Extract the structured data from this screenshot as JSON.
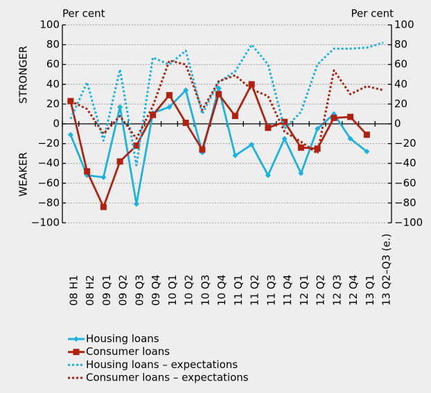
{
  "chart_data": {
    "type": "line",
    "y_label_left": "Per cent",
    "y_label_right": "Per cent",
    "upper_label": "STRONGER",
    "lower_label": "WEAKER",
    "categories": [
      "08 H1",
      "08 H2",
      "09 Q1",
      "09 Q2",
      "09 Q3",
      "09 Q4",
      "10 Q1",
      "10 Q2",
      "10 Q3",
      "10 Q4",
      "11 Q1",
      "11 Q2",
      "11 Q3",
      "11 Q4",
      "12 Q1",
      "12 Q2",
      "12 Q3",
      "12 Q4",
      "13 Q1",
      "13 Q2–Q3 (e.)"
    ],
    "series": [
      {
        "name": "Housing loans",
        "color": "#1ab2e0",
        "style": "solid",
        "marker": "diamond",
        "values": [
          -11,
          -52,
          -54,
          17,
          -81,
          11,
          17,
          34,
          -29,
          36,
          -32,
          -21,
          -52,
          -15,
          -50,
          -5,
          10,
          -15,
          -28,
          null
        ]
      },
      {
        "name": "Consumer loans",
        "color": "#b0220f",
        "style": "solid",
        "marker": "square",
        "values": [
          23,
          -48,
          -84,
          -38,
          -22,
          9,
          29,
          1,
          -26,
          30,
          8,
          40,
          -4,
          2,
          -24,
          -25,
          6,
          7,
          -11,
          null
        ]
      },
      {
        "name": "Housing loans – expectations",
        "color": "#1ab2e0",
        "style": "dotted",
        "values": [
          5,
          42,
          -17,
          55,
          -42,
          67,
          60,
          74,
          10,
          42,
          53,
          80,
          60,
          -5,
          12,
          60,
          76,
          76,
          77,
          82
        ]
      },
      {
        "name": "Consumer loans – expectations",
        "color": "#b0220f",
        "style": "dotted",
        "values": [
          23,
          15,
          -10,
          8,
          -15,
          18,
          64,
          60,
          14,
          43,
          49,
          35,
          28,
          -8,
          -18,
          -30,
          54,
          30,
          38,
          34
        ]
      }
    ],
    "ylim": [
      -100,
      100
    ],
    "yticks": [
      100,
      80,
      60,
      40,
      20,
      0,
      {
        "value": -20,
        "label": "−20"
      },
      {
        "value": -40,
        "label": "−40"
      },
      {
        "value": -60,
        "label": "−60"
      },
      {
        "value": -80,
        "label": "−80"
      },
      {
        "value": -100,
        "label": "−100"
      }
    ],
    "y2lim": [
      -100,
      100
    ],
    "y2ticks": [
      100,
      80,
      60,
      40,
      20,
      0,
      {
        "value": -20,
        "label": "−20"
      },
      {
        "value": -40,
        "label": "−40"
      },
      {
        "value": -60,
        "label": "−60"
      },
      {
        "value": -80,
        "label": "−80"
      },
      {
        "value": -100,
        "label": "−100"
      }
    ],
    "grid": true
  }
}
